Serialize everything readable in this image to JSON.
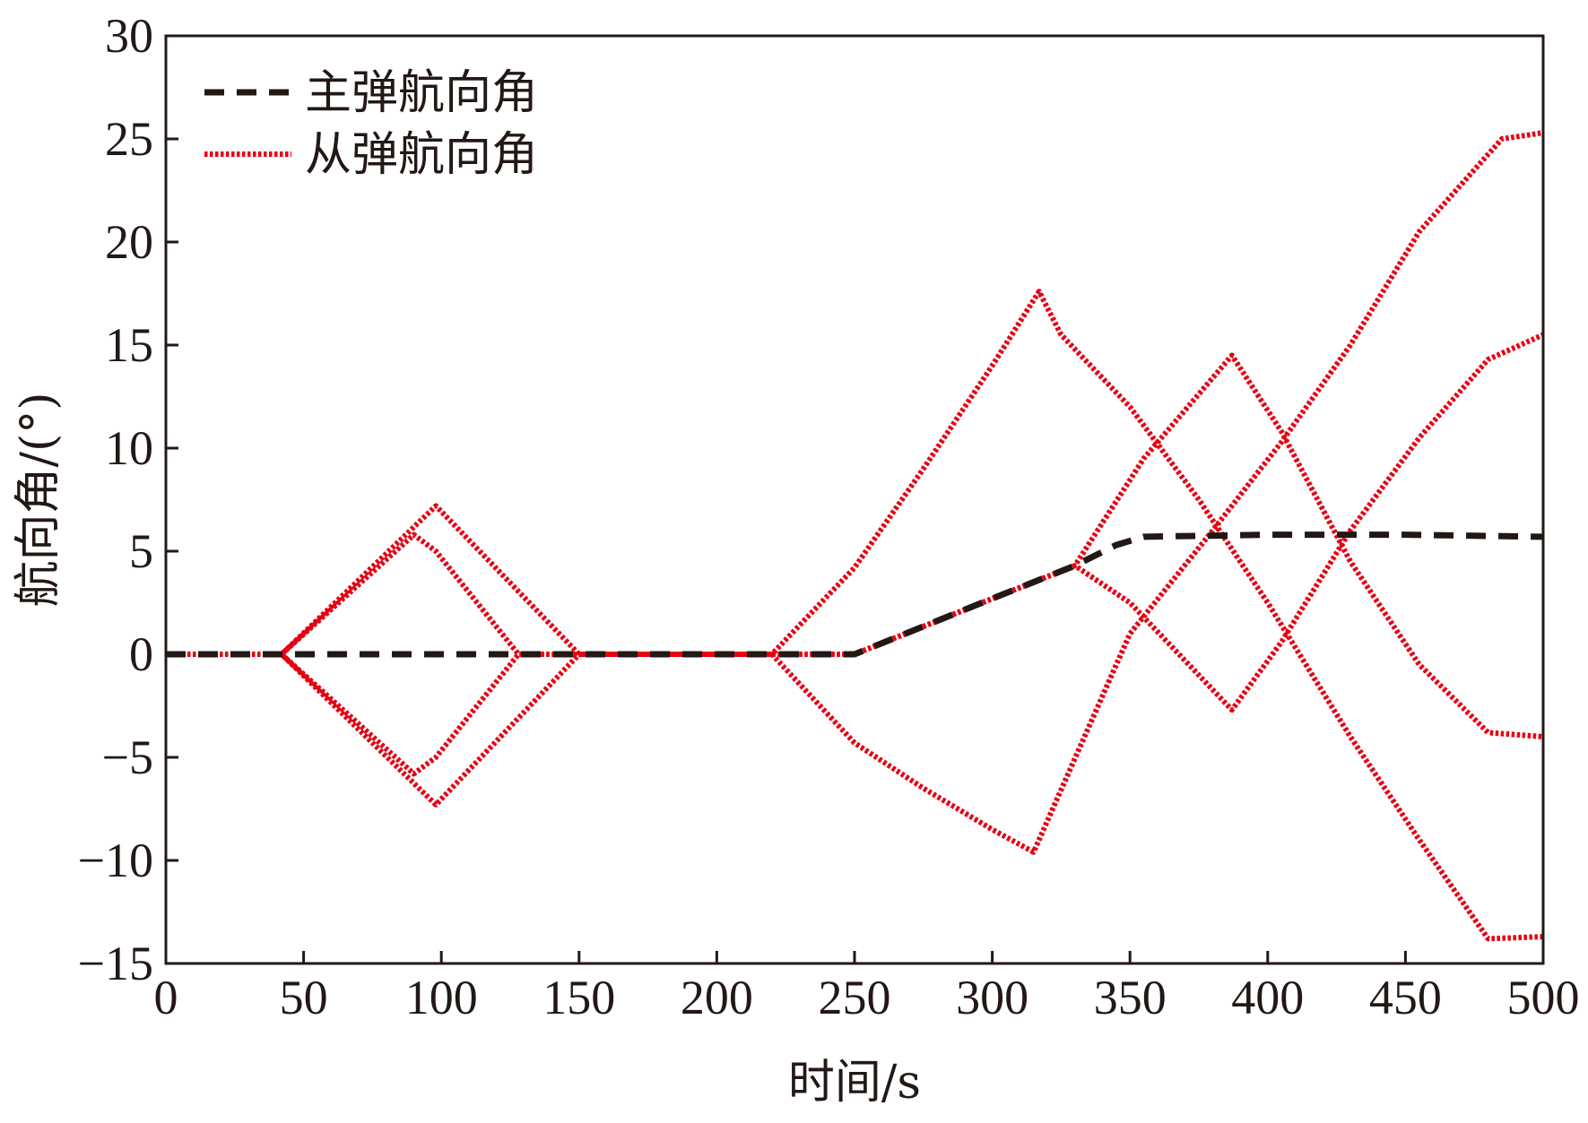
{
  "chart_data": {
    "type": "line",
    "title": "",
    "xlabel": "时间/s",
    "ylabel": "航向角/(°)",
    "xlim": [
      0,
      500
    ],
    "ylim": [
      -15,
      30
    ],
    "xticks": [
      0,
      50,
      100,
      150,
      200,
      250,
      300,
      350,
      400,
      450,
      500
    ],
    "yticks": [
      -15,
      -10,
      -5,
      0,
      5,
      10,
      15,
      20,
      25,
      30
    ],
    "x_tick_labels": [
      "0",
      "50",
      "100",
      "150",
      "200",
      "250",
      "300",
      "350",
      "400",
      "450",
      "500"
    ],
    "y_tick_labels": [
      "−15",
      "−10",
      "−5",
      "0",
      "5",
      "10",
      "15",
      "20",
      "25",
      "30"
    ],
    "grid": false,
    "legend_position": "top-left",
    "legend": [
      {
        "label": "主弹航向角",
        "style": "dashed",
        "color": "#231815"
      },
      {
        "label": "从弹航向角",
        "style": "dotted",
        "color": "#e60012"
      }
    ],
    "series": [
      {
        "group": "主弹航向角",
        "style": "dashed",
        "color": "#231815",
        "points": [
          [
            0,
            0
          ],
          [
            250,
            0
          ],
          [
            300,
            2.7
          ],
          [
            330,
            4.3
          ],
          [
            345,
            5.3
          ],
          [
            355,
            5.7
          ],
          [
            400,
            5.8
          ],
          [
            450,
            5.8
          ],
          [
            500,
            5.7
          ]
        ]
      },
      {
        "group": "从弹航向角",
        "style": "dotted",
        "color": "#e60012",
        "points": [
          [
            0,
            0
          ],
          [
            42,
            0
          ],
          [
            98,
            7.2
          ],
          [
            150,
            0
          ],
          [
            220,
            0
          ],
          [
            250,
            4.2
          ],
          [
            275,
            9
          ],
          [
            300,
            14
          ],
          [
            317,
            17.6
          ],
          [
            325,
            15.5
          ],
          [
            350,
            12
          ],
          [
            375,
            7.5
          ],
          [
            400,
            2.5
          ],
          [
            430,
            -4
          ],
          [
            455,
            -9
          ],
          [
            480,
            -13.8
          ],
          [
            500,
            -13.7
          ]
        ]
      },
      {
        "group": "从弹航向角",
        "style": "dotted",
        "color": "#e60012",
        "points": [
          [
            0,
            0
          ],
          [
            42,
            0
          ],
          [
            98,
            -7.3
          ],
          [
            150,
            0
          ],
          [
            220,
            0
          ],
          [
            250,
            -4.3
          ],
          [
            275,
            -6.5
          ],
          [
            300,
            -8.5
          ],
          [
            315,
            -9.6
          ],
          [
            350,
            1
          ],
          [
            380,
            6
          ],
          [
            405,
            10.3
          ],
          [
            430,
            15
          ],
          [
            455,
            20.5
          ],
          [
            485,
            25
          ],
          [
            500,
            25.3
          ]
        ]
      },
      {
        "group": "从弹航向角",
        "style": "dotted",
        "color": "#e60012",
        "points": [
          [
            42,
            0
          ],
          [
            90,
            5.8
          ],
          [
            98,
            5
          ],
          [
            110,
            3
          ],
          [
            128,
            0
          ],
          [
            150,
            0
          ],
          [
            250,
            0
          ],
          [
            300,
            2.7
          ],
          [
            330,
            4.3
          ],
          [
            350,
            2.5
          ],
          [
            387,
            -2.7
          ],
          [
            405,
            0.6
          ],
          [
            430,
            6
          ],
          [
            455,
            10.5
          ],
          [
            480,
            14.3
          ],
          [
            500,
            15.5
          ]
        ]
      },
      {
        "group": "从弹航向角",
        "style": "dotted",
        "color": "#e60012",
        "points": [
          [
            42,
            0
          ],
          [
            90,
            -5.8
          ],
          [
            98,
            -5
          ],
          [
            110,
            -3
          ],
          [
            128,
            0
          ],
          [
            150,
            0
          ],
          [
            250,
            0
          ],
          [
            300,
            2.7
          ],
          [
            330,
            4.3
          ],
          [
            355,
            9.5
          ],
          [
            387,
            14.5
          ],
          [
            405,
            10.8
          ],
          [
            430,
            4.5
          ],
          [
            455,
            -0.5
          ],
          [
            480,
            -3.8
          ],
          [
            500,
            -4
          ]
        ]
      }
    ]
  }
}
